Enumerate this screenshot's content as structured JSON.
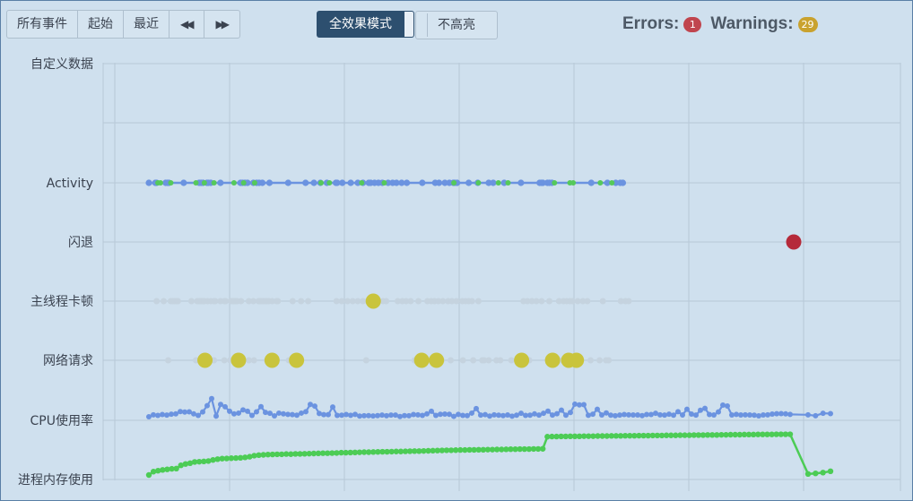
{
  "toolbar": {
    "all_events": "所有事件",
    "start": "起始",
    "recent": "最近",
    "prev_icon": "double-left-arrow",
    "next_icon": "double-right-arrow"
  },
  "mode": {
    "full_effect": "全效果模式",
    "no_highlight": "不高亮"
  },
  "status": {
    "errors_label": "Errors:",
    "errors_count": "1",
    "warnings_label": "Warnings:",
    "warnings_count": "29",
    "error_color": "#c0454e",
    "warning_color": "#c9a22e"
  },
  "chart_data": {
    "type": "scatter",
    "x_range": [
      0,
      1000
    ],
    "grid": true,
    "rows": [
      "自定义数据",
      "Activity",
      "闪退",
      "主线程卡顿",
      "网络请求",
      "CPU使用率",
      "进程内存使用"
    ],
    "colors": {
      "activity": "#6b93e0",
      "activity_alt": "#55c95a",
      "crash": "#b52a3a",
      "idle": "#c5d3df",
      "warn": "#c9c43c",
      "cpu": "#6b93e0",
      "memory": "#4ccc55"
    },
    "activity_points": [
      0,
      10,
      12,
      26,
      29,
      31,
      54,
      78,
      81,
      84,
      90,
      92,
      96,
      111,
      142,
      145,
      149,
      153,
      162,
      167,
      171,
      176,
      187,
      216,
      243,
      256,
      266,
      276,
      290,
      292,
      300,
      313,
      324,
      332,
      341,
      344,
      350,
      356,
      362,
      371,
      378,
      384,
      392,
      400,
      424,
      444,
      450,
      459,
      466,
      472,
      474,
      478,
      496,
      510,
      527,
      534,
      551,
      577,
      606,
      609,
      611,
      618,
      621,
      625,
      686,
      711,
      724,
      731,
      735
    ],
    "activity_alt_points": [
      14,
      18,
      34,
      73,
      86,
      101,
      132,
      147,
      164,
      267,
      280,
      330,
      365,
      473,
      511,
      542,
      557,
      629,
      653,
      658,
      700,
      718
    ],
    "crash_points": [
      1000
    ],
    "main_thread_idle": [
      12,
      23,
      34,
      37,
      40,
      43,
      45,
      66,
      75,
      78,
      80,
      82,
      84,
      86,
      91,
      96,
      101,
      103,
      111,
      117,
      119,
      127,
      130,
      132,
      135,
      137,
      143,
      155,
      162,
      170,
      172,
      174,
      177,
      180,
      183,
      186,
      191,
      198,
      200,
      223,
      236,
      247,
      291,
      299,
      308,
      316,
      324,
      332,
      339,
      346,
      356,
      363,
      368,
      386,
      393,
      399,
      406,
      418,
      432,
      438,
      443,
      449,
      456,
      464,
      470,
      477,
      486,
      491,
      496,
      501,
      511,
      581,
      587,
      594,
      601,
      609,
      621,
      636,
      643,
      648,
      653,
      657,
      665,
      673,
      680,
      704,
      732,
      739,
      744
    ],
    "main_thread_warn": [
      348
    ],
    "network_idle": [
      30,
      73,
      94,
      101,
      117,
      126,
      134,
      145,
      155,
      163,
      183,
      217,
      337,
      412,
      419,
      426,
      433,
      440,
      454,
      468,
      487,
      503,
      517,
      520,
      527,
      539,
      545,
      562,
      590,
      626,
      631,
      637,
      644,
      653,
      658,
      664,
      685,
      699,
      709,
      713
    ],
    "network_warn": [
      87,
      139,
      191,
      229,
      423,
      446,
      578,
      626,
      651,
      663
    ],
    "cpu": [
      0,
      1.5,
      1.0,
      1.7,
      1.3,
      2.0,
      2.2,
      4.0,
      3.6,
      3.8,
      2.2,
      1.0,
      3.7,
      8.5,
      14.0,
      0.5,
      9.5,
      7.7,
      4.2,
      2.2,
      2.8,
      5.3,
      4.2,
      1.0,
      3.8,
      7.8,
      3.4,
      2.7,
      0.7,
      2.8,
      2.2,
      1.8,
      1.6,
      1.2,
      2.8,
      3.9,
      9.5,
      8.2,
      2.5,
      1.6,
      1.6,
      7.5,
      1.0,
      1.2,
      1.7,
      1.1,
      1.8,
      0.5,
      0.8,
      0.9,
      0.6,
      0.9,
      1.3,
      0.8,
      1.3,
      1.3,
      0.2,
      0.9,
      0.8,
      1.7,
      1.5,
      1.0,
      2.2,
      4.2,
      1.0,
      1.9,
      2.1,
      1.9,
      0.3,
      1.8,
      1.0,
      0.9,
      2.8,
      6.3,
      1.3,
      1.6,
      0.5,
      1.5,
      1.2,
      0.9,
      1.4,
      0.4,
      1.2,
      2.7,
      1.0,
      1.2,
      2.2,
      1.3,
      2.7,
      4.3,
      1.3,
      2.3,
      5.1,
      1.2,
      3.3,
      9.7,
      9.1,
      9.3,
      1.1,
      2.0,
      5.8,
      1.4,
      2.9,
      1.2,
      0.8,
      1.3,
      1.7,
      1.5,
      1.4,
      1.4,
      0.9,
      1.7,
      1.7,
      2.7,
      1.5,
      1.3,
      2.0,
      1.2,
      3.9,
      1.4,
      5.8,
      2.1,
      1.3,
      5.0,
      6.5,
      1.7,
      1.4,
      3.7,
      9.0,
      8.3,
      1.4,
      1.8,
      1.4,
      1.5,
      1.4,
      1.2,
      0.7,
      1.4,
      1.5,
      2.1,
      2.3,
      2.4,
      2.2,
      1.8,
      1.5,
      0.8,
      2.7,
      2.4
    ],
    "memory": [
      0,
      2.5,
      3.2,
      3.8,
      4.2,
      4.6,
      4.8,
      7.2,
      8.2,
      8.8,
      9.7,
      9.9,
      10.1,
      10.4,
      11.2,
      11.8,
      12.2,
      12.3,
      12.5,
      12.6,
      12.8,
      13.1,
      13.6,
      14.4,
      14.8,
      15.0,
      15.2,
      15.3,
      15.4,
      15.4,
      15.6,
      15.5,
      15.7,
      15.7,
      15.8,
      15.9,
      16.0,
      16.1,
      16.2,
      16.2,
      16.3,
      16.4,
      16.6,
      16.6,
      16.7,
      16.8,
      16.9,
      17.0,
      17.0,
      17.1,
      17.2,
      17.3,
      17.3,
      17.4,
      17.5,
      17.5,
      17.6,
      17.7,
      17.8,
      17.8,
      17.9,
      18.0,
      18.1,
      18.2,
      18.3,
      18.4,
      18.4,
      18.5,
      18.6,
      18.6,
      18.7,
      18.7,
      18.8,
      18.8,
      18.9,
      18.9,
      19.0,
      19.0,
      19.1,
      19.2,
      19.2,
      19.3,
      19.3,
      19.3,
      19.4,
      19.4,
      19.5,
      28.5,
      28.6,
      28.6,
      28.7,
      28.7,
      28.8,
      28.8,
      28.8,
      28.9,
      28.9,
      28.9,
      29.0,
      29.0,
      29.0,
      29.1,
      29.1,
      29.1,
      29.2,
      29.2,
      29.2,
      29.3,
      29.3,
      29.3,
      29.4,
      29.4,
      29.4,
      29.5,
      29.5,
      29.5,
      29.6,
      29.6,
      29.6,
      29.7,
      29.7,
      29.7,
      29.8,
      29.8,
      29.8,
      29.9,
      29.9,
      30.0,
      30.0,
      30.0,
      30.1,
      30.1,
      30.1,
      30.2,
      30.2,
      30.2,
      30.2,
      30.3,
      30.3,
      30.3,
      30.3,
      0.8,
      1.2,
      1.8,
      2.8
    ]
  }
}
